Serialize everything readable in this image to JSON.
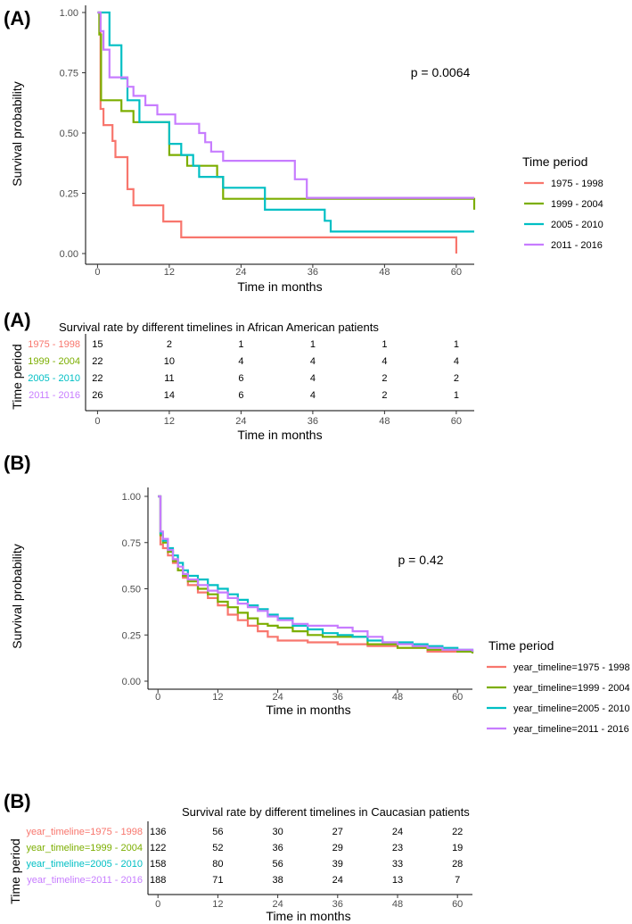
{
  "colors": {
    "c1": "#F8766D",
    "c2": "#7CAE00",
    "c3": "#00BFC4",
    "c4": "#C77CFF"
  },
  "chart_data": [
    {
      "type": "line",
      "panel_label": "(A)",
      "title": "",
      "xlabel": "Time in months",
      "ylabel": "Survival probability",
      "xlim": [
        -2,
        63
      ],
      "ylim": [
        0,
        1
      ],
      "xticks": [
        "0",
        "12",
        "24",
        "36",
        "48",
        "60"
      ],
      "xtick_values": [
        0,
        12,
        24,
        36,
        48,
        60
      ],
      "yticks": [
        "0.00",
        "0.25",
        "0.50",
        "0.75",
        "1.00"
      ],
      "ytick_values": [
        0,
        0.25,
        0.5,
        0.75,
        1
      ],
      "pvalue": "p = 0.0064",
      "legend": {
        "title": "Time period",
        "labels": [
          "1975 - 1998",
          "1999 - 2004",
          "2005 - 2010",
          "2011 - 2016"
        ],
        "position": "right"
      },
      "series": [
        {
          "name": "1975 - 1998",
          "x": [
            0,
            0.5,
            1,
            2,
            2.5,
            3,
            4,
            5,
            6,
            10,
            11,
            14,
            60,
            60
          ],
          "y": [
            1,
            0.6,
            0.533,
            0.533,
            0.467,
            0.4,
            0.4,
            0.267,
            0.2,
            0.2,
            0.133,
            0.067,
            0.067,
            0
          ]
        },
        {
          "name": "1999 - 2004",
          "x": [
            0,
            0.3,
            0.6,
            4,
            6,
            10,
            12,
            15,
            18,
            20,
            21,
            63
          ],
          "y": [
            1,
            0.909,
            0.636,
            0.591,
            0.545,
            0.545,
            0.409,
            0.364,
            0.364,
            0.318,
            0.227,
            0.182
          ]
        },
        {
          "name": "2005 - 2010",
          "x": [
            0,
            0.5,
            1,
            2,
            4,
            5,
            7,
            10,
            12,
            14,
            16,
            17,
            20,
            21,
            24,
            28,
            35,
            38,
            39,
            63
          ],
          "y": [
            1,
            1,
            1,
            0.864,
            0.727,
            0.636,
            0.545,
            0.545,
            0.455,
            0.409,
            0.364,
            0.318,
            0.318,
            0.273,
            0.273,
            0.182,
            0.182,
            0.136,
            0.091,
            0.091
          ]
        },
        {
          "name": "2011 - 2016",
          "x": [
            0,
            0.5,
            1,
            2,
            5,
            6,
            8,
            10,
            13,
            17,
            18,
            19,
            21,
            33,
            35,
            63
          ],
          "y": [
            1,
            0.923,
            0.846,
            0.731,
            0.692,
            0.654,
            0.615,
            0.577,
            0.538,
            0.5,
            0.462,
            0.423,
            0.385,
            0.308,
            0.231,
            0.231
          ]
        }
      ]
    },
    {
      "type": "table",
      "panel_label": "(A)",
      "title": "Survival rate by different timelines in African American patients",
      "xlabel": "Time in months",
      "ylabel": "Time period",
      "columns": [
        "0",
        "12",
        "24",
        "36",
        "48",
        "60"
      ],
      "rows": [
        {
          "label": "1975 - 1998",
          "values": [
            "15",
            "2",
            "1",
            "1",
            "1",
            "1"
          ]
        },
        {
          "label": "1999 - 2004",
          "values": [
            "22",
            "10",
            "4",
            "4",
            "4",
            "4"
          ]
        },
        {
          "label": "2005 - 2010",
          "values": [
            "22",
            "11",
            "6",
            "4",
            "2",
            "2"
          ]
        },
        {
          "label": "2011 - 2016",
          "values": [
            "26",
            "14",
            "6",
            "4",
            "2",
            "1"
          ]
        }
      ]
    },
    {
      "type": "line",
      "panel_label": "(B)",
      "title": "",
      "xlabel": "Time in months",
      "ylabel": "Survival probability",
      "xlim": [
        -2,
        63
      ],
      "ylim": [
        0,
        1
      ],
      "xticks": [
        "0",
        "12",
        "24",
        "36",
        "48",
        "60"
      ],
      "xtick_values": [
        0,
        12,
        24,
        36,
        48,
        60
      ],
      "yticks": [
        "0.00",
        "0.25",
        "0.50",
        "0.75",
        "1.00"
      ],
      "ytick_values": [
        0,
        0.25,
        0.5,
        0.75,
        1
      ],
      "pvalue": "p = 0.42",
      "legend": {
        "title": "Time period",
        "labels": [
          "year_timeline=1975 - 1998",
          "year_timeline=1999 - 2004",
          "year_timeline=2005 - 2010",
          "year_timeline=2011 - 2016"
        ],
        "position": "right"
      },
      "series": [
        {
          "name": "year_timeline=1975 - 1998",
          "x": [
            0,
            0.5,
            1,
            2,
            3,
            4,
            5,
            6,
            8,
            10,
            12,
            14,
            16,
            18,
            20,
            22,
            24,
            30,
            36,
            42,
            48,
            54,
            60,
            63
          ],
          "y": [
            1,
            0.74,
            0.72,
            0.68,
            0.64,
            0.6,
            0.56,
            0.52,
            0.48,
            0.45,
            0.41,
            0.36,
            0.33,
            0.3,
            0.27,
            0.24,
            0.22,
            0.21,
            0.2,
            0.19,
            0.18,
            0.16,
            0.16,
            0.15
          ]
        },
        {
          "name": "year_timeline=1999 - 2004",
          "x": [
            0,
            0.5,
            1,
            2,
            3,
            4,
            5,
            6,
            8,
            10,
            12,
            14,
            16,
            18,
            20,
            22,
            24,
            27,
            30,
            33,
            36,
            42,
            48,
            54,
            60,
            63
          ],
          "y": [
            1,
            0.79,
            0.75,
            0.7,
            0.65,
            0.6,
            0.57,
            0.54,
            0.5,
            0.47,
            0.43,
            0.4,
            0.37,
            0.34,
            0.31,
            0.3,
            0.29,
            0.27,
            0.25,
            0.24,
            0.24,
            0.2,
            0.18,
            0.17,
            0.16,
            0.15
          ]
        },
        {
          "name": "year_timeline=2005 - 2010",
          "x": [
            0,
            0.5,
            1,
            2,
            3,
            4,
            5,
            6,
            8,
            10,
            12,
            14,
            16,
            18,
            20,
            22,
            24,
            27,
            30,
            33,
            36,
            39,
            42,
            45,
            48,
            51,
            54,
            57,
            60,
            63
          ],
          "y": [
            1,
            0.8,
            0.76,
            0.72,
            0.68,
            0.64,
            0.6,
            0.57,
            0.55,
            0.52,
            0.5,
            0.47,
            0.44,
            0.41,
            0.39,
            0.36,
            0.34,
            0.3,
            0.28,
            0.26,
            0.25,
            0.24,
            0.22,
            0.21,
            0.21,
            0.2,
            0.19,
            0.18,
            0.17,
            0.16
          ]
        },
        {
          "name": "year_timeline=2011 - 2016",
          "x": [
            0,
            0.5,
            1,
            2,
            3,
            4,
            5,
            6,
            8,
            10,
            12,
            14,
            16,
            18,
            20,
            22,
            24,
            27,
            30,
            33,
            36,
            39,
            42,
            45,
            48,
            51,
            54,
            57,
            60,
            63
          ],
          "y": [
            1,
            0.81,
            0.77,
            0.71,
            0.66,
            0.62,
            0.58,
            0.55,
            0.52,
            0.49,
            0.48,
            0.45,
            0.42,
            0.4,
            0.38,
            0.35,
            0.33,
            0.31,
            0.3,
            0.3,
            0.29,
            0.27,
            0.24,
            0.21,
            0.2,
            0.19,
            0.18,
            0.17,
            0.17,
            0.16
          ]
        }
      ]
    },
    {
      "type": "table",
      "panel_label": "(B)",
      "title": "Survival rate by different timelines in Caucasian patients",
      "xlabel": "Time in months",
      "ylabel": "Time period",
      "columns": [
        "0",
        "12",
        "24",
        "36",
        "48",
        "60"
      ],
      "rows": [
        {
          "label": "year_timeline=1975 - 1998",
          "values": [
            "136",
            "56",
            "30",
            "27",
            "24",
            "22"
          ]
        },
        {
          "label": "year_timeline=1999 - 2004",
          "values": [
            "122",
            "52",
            "36",
            "29",
            "23",
            "19"
          ]
        },
        {
          "label": "year_timeline=2005 - 2010",
          "values": [
            "158",
            "80",
            "56",
            "39",
            "33",
            "28"
          ]
        },
        {
          "label": "year_timeline=2011 - 2016",
          "values": [
            "188",
            "71",
            "38",
            "24",
            "13",
            "7"
          ]
        }
      ]
    }
  ]
}
